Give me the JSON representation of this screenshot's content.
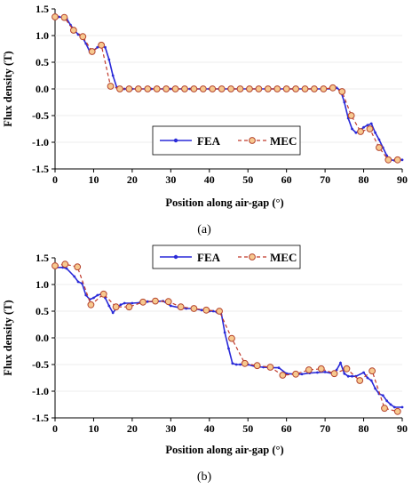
{
  "chart_data": [
    {
      "type": "line",
      "panel_label": "(a)",
      "xlabel": "Position along air-gap (°)",
      "ylabel": "Flux density (T)",
      "xlim": [
        0,
        90
      ],
      "ylim": [
        -1.5,
        1.5
      ],
      "xticks": [
        "0",
        "10",
        "20",
        "30",
        "40",
        "50",
        "60",
        "70",
        "80",
        "90"
      ],
      "yticks": [
        "1.5",
        "1.0",
        "0.5",
        "0.0",
        "-0.5",
        "-1.0",
        "-1.5"
      ],
      "legend": {
        "position": "lower-right"
      },
      "series": [
        {
          "name": "FEA",
          "color": "#2a2ad8",
          "style": "solid-with-dots",
          "x": [
            0,
            1,
            2,
            3,
            4,
            5,
            6,
            7,
            8,
            9,
            10,
            11,
            12,
            13,
            14,
            15,
            16,
            17,
            18,
            20,
            25,
            30,
            35,
            40,
            45,
            50,
            55,
            60,
            65,
            70,
            72,
            73,
            74,
            75,
            76,
            77,
            78,
            79,
            80,
            81,
            82,
            83,
            84,
            85,
            86,
            87,
            88,
            89,
            90
          ],
          "y": [
            1.35,
            1.35,
            1.34,
            1.32,
            1.2,
            1.1,
            1.02,
            0.98,
            0.85,
            0.7,
            0.72,
            0.78,
            0.8,
            0.78,
            0.55,
            0.25,
            0.03,
            -0.02,
            0.0,
            0.0,
            0.0,
            0.0,
            0.0,
            0.0,
            0.0,
            0.0,
            0.0,
            0.0,
            0.0,
            0.0,
            0.0,
            0.02,
            -0.03,
            -0.25,
            -0.55,
            -0.75,
            -0.82,
            -0.78,
            -0.72,
            -0.68,
            -0.65,
            -0.82,
            -0.95,
            -1.1,
            -1.25,
            -1.33,
            -1.34,
            -1.33,
            -1.33
          ]
        },
        {
          "name": "MEC",
          "color": "#c0392b",
          "style": "dashed-with-circles",
          "x": [
            0,
            2.4,
            4.8,
            7.2,
            9.6,
            12,
            14.4,
            16.8,
            19.2,
            21.6,
            24,
            26.4,
            28.8,
            31.2,
            33.6,
            36,
            38.4,
            40.8,
            43.2,
            45.6,
            48,
            50.4,
            52.8,
            55.2,
            57.6,
            60,
            62.4,
            64.8,
            67.2,
            69.6,
            72,
            74.4,
            76.8,
            79.2,
            81.6,
            84,
            86.4,
            88.8
          ],
          "y": [
            1.35,
            1.34,
            1.1,
            0.98,
            0.7,
            0.82,
            0.05,
            0.0,
            0.0,
            0.0,
            0.0,
            0.0,
            0.0,
            0.0,
            0.0,
            0.0,
            0.0,
            0.0,
            0.0,
            0.0,
            0.0,
            0.0,
            0.0,
            0.0,
            0.0,
            0.0,
            0.0,
            0.0,
            0.0,
            0.0,
            0.02,
            -0.05,
            -0.5,
            -0.8,
            -0.75,
            -1.1,
            -1.33,
            -1.33
          ]
        }
      ]
    },
    {
      "type": "line",
      "panel_label": "(b)",
      "xlabel": "Position along air-gap (°)",
      "ylabel": "Flux density (T)",
      "xlim": [
        0,
        90
      ],
      "ylim": [
        -1.5,
        1.5
      ],
      "xticks": [
        "0",
        "10",
        "20",
        "30",
        "40",
        "50",
        "60",
        "70",
        "80",
        "90"
      ],
      "yticks": [
        "1.5",
        "1.0",
        "0.5",
        "0.0",
        "-0.5",
        "-1.0",
        "-1.5"
      ],
      "legend": {
        "position": "top"
      },
      "series": [
        {
          "name": "FEA",
          "color": "#2a2ad8",
          "style": "solid-with-dots",
          "x": [
            0,
            2,
            3,
            5,
            6,
            7,
            8,
            9,
            10,
            11,
            12,
            13,
            14,
            15,
            16,
            17,
            18,
            20,
            22,
            24,
            26,
            28,
            30,
            32,
            34,
            36,
            38,
            40,
            41,
            42,
            43,
            44,
            45,
            46,
            47,
            48,
            50,
            52,
            54,
            56,
            58,
            60,
            62,
            64,
            66,
            68,
            70,
            72,
            73,
            74,
            75,
            76,
            77,
            78,
            80,
            81,
            82,
            83,
            84,
            85,
            86,
            87,
            88,
            90
          ],
          "y": [
            1.32,
            1.32,
            1.3,
            1.15,
            1.05,
            1.02,
            0.8,
            0.72,
            0.75,
            0.8,
            0.82,
            0.75,
            0.6,
            0.47,
            0.56,
            0.62,
            0.65,
            0.65,
            0.66,
            0.68,
            0.68,
            0.69,
            0.6,
            0.57,
            0.55,
            0.55,
            0.52,
            0.5,
            0.5,
            0.48,
            0.5,
            0.1,
            -0.2,
            -0.48,
            -0.5,
            -0.5,
            -0.5,
            -0.54,
            -0.55,
            -0.56,
            -0.56,
            -0.67,
            -0.68,
            -0.68,
            -0.66,
            -0.65,
            -0.64,
            -0.67,
            -0.6,
            -0.47,
            -0.67,
            -0.72,
            -0.72,
            -0.72,
            -0.65,
            -0.75,
            -0.8,
            -0.95,
            -1.05,
            -1.08,
            -1.18,
            -1.25,
            -1.3,
            -1.3
          ]
        },
        {
          "name": "MEC",
          "color": "#c0392b",
          "style": "dashed-with-circles",
          "x": [
            0,
            2.6,
            5.8,
            9.3,
            12.6,
            15.8,
            19.2,
            22.8,
            26,
            29.4,
            32.6,
            36,
            39.2,
            42.6,
            45.8,
            49.2,
            52.4,
            55.8,
            59,
            62.4,
            65.8,
            69,
            72.4,
            75.6,
            79,
            82.2,
            85.4,
            88.8
          ],
          "y": [
            1.35,
            1.38,
            1.33,
            0.62,
            0.82,
            0.58,
            0.58,
            0.67,
            0.69,
            0.68,
            0.58,
            0.55,
            0.52,
            0.5,
            -0.01,
            -0.48,
            -0.52,
            -0.55,
            -0.7,
            -0.68,
            -0.6,
            -0.58,
            -0.67,
            -0.58,
            -0.8,
            -0.62,
            -1.32,
            -1.38
          ]
        }
      ]
    }
  ]
}
